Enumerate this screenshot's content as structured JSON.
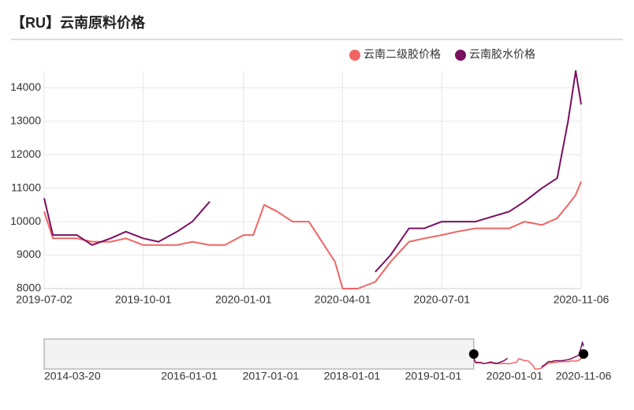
{
  "chart_data": {
    "type": "line",
    "title": "【RU】云南原料价格",
    "x": [
      "2019-07-02",
      "2019-07-10",
      "2019-08-01",
      "2019-08-15",
      "2019-09-01",
      "2019-09-15",
      "2019-10-01",
      "2019-10-15",
      "2019-11-01",
      "2019-11-15",
      "2019-12-01",
      "2019-12-15",
      "2020-01-01",
      "2020-01-10",
      "2020-01-20",
      "2020-02-01",
      "2020-02-15",
      "2020-03-01",
      "2020-03-15",
      "2020-03-25",
      "2020-04-01",
      "2020-04-15",
      "2020-05-01",
      "2020-05-15",
      "2020-06-01",
      "2020-06-15",
      "2020-07-01",
      "2020-07-15",
      "2020-08-01",
      "2020-09-01",
      "2020-09-15",
      "2020-10-01",
      "2020-10-15",
      "2020-10-25",
      "2020-11-01",
      "2020-11-06"
    ],
    "series": [
      {
        "name": "云南二级胶价格",
        "color": "#f06464",
        "values": [
          10300,
          9500,
          9500,
          9400,
          9400,
          9500,
          9300,
          9300,
          9300,
          9400,
          9300,
          9300,
          9600,
          9600,
          10500,
          10300,
          10000,
          10000,
          9300,
          8800,
          8000,
          8000,
          8200,
          8800,
          9400,
          9500,
          9600,
          9700,
          9800,
          9800,
          10000,
          9900,
          10100,
          10500,
          10800,
          11200
        ]
      },
      {
        "name": "云南胶水价格",
        "color": "#7a1060",
        "values": [
          10700,
          9600,
          9600,
          9300,
          9500,
          9700,
          9500,
          9400,
          9700,
          10000,
          10600,
          null,
          null,
          null,
          null,
          null,
          null,
          null,
          null,
          null,
          null,
          null,
          8500,
          9000,
          9800,
          9800,
          10000,
          10000,
          10000,
          10300,
          10600,
          11000,
          11300,
          13000,
          14500,
          13500
        ]
      }
    ],
    "xlim": [
      "2019-07-02",
      "2020-11-06"
    ],
    "xticks": [
      "2019-07-02",
      "2019-10-01",
      "2020-01-01",
      "2020-04-01",
      "2020-07-01",
      "2020-11-06"
    ],
    "ylim": [
      8000,
      14500
    ],
    "yticks": [
      8000,
      9000,
      10000,
      11000,
      12000,
      13000,
      14000
    ],
    "grid": true,
    "legend": "top-right",
    "navigator": {
      "xlim": [
        "2014-03-20",
        "2020-11-06"
      ],
      "xticks": [
        "2014-03-20",
        "2016-01-01",
        "2017-01-01",
        "2018-01-01",
        "2019-01-01",
        "2020-01-01",
        "2020-11-06"
      ]
    }
  }
}
